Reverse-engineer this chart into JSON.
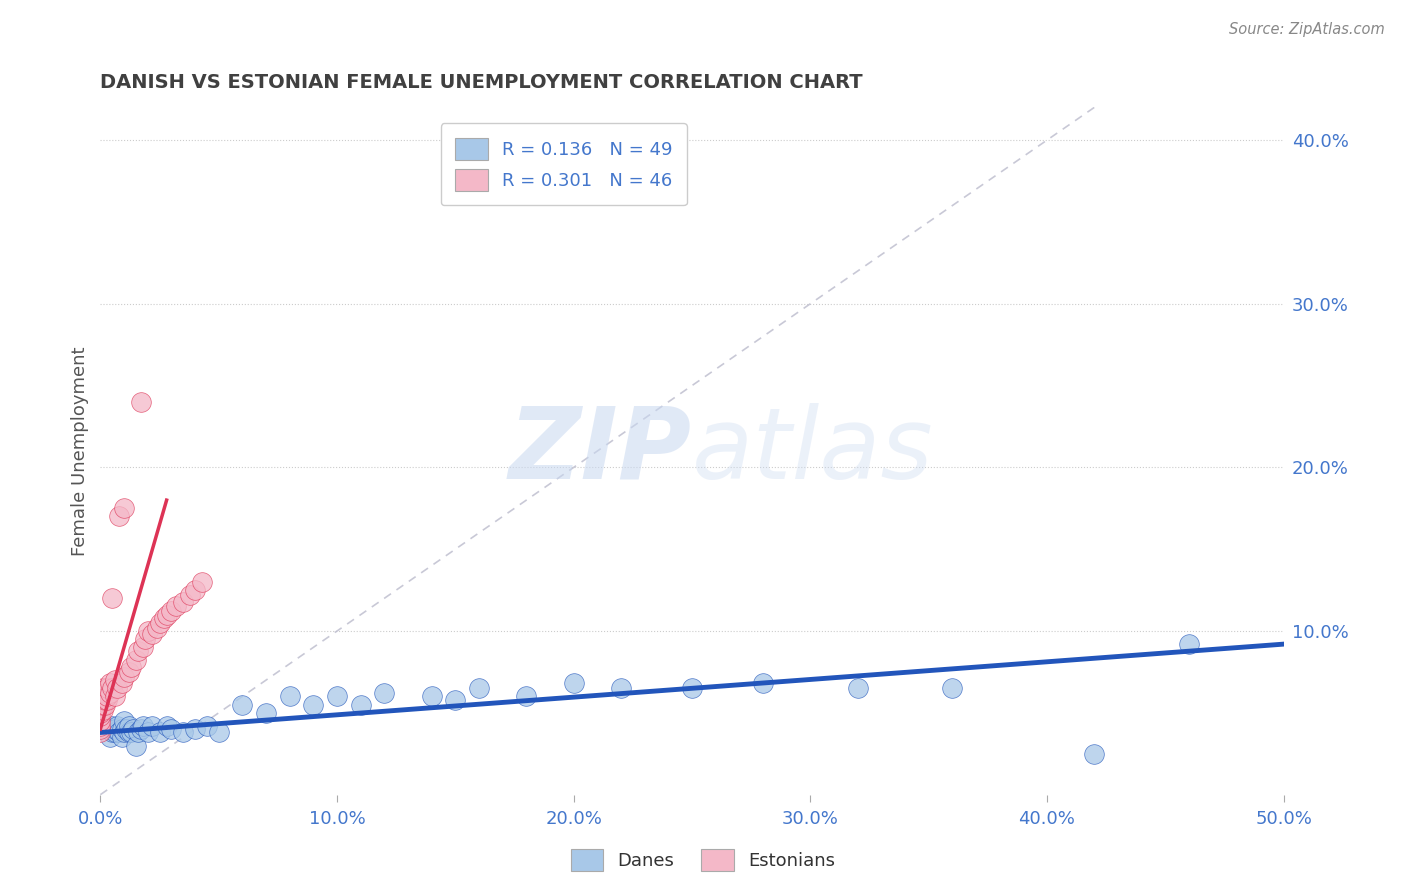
{
  "title": "DANISH VS ESTONIAN FEMALE UNEMPLOYMENT CORRELATION CHART",
  "source_text": "Source: ZipAtlas.com",
  "ylabel": "Female Unemployment",
  "xlim": [
    0.0,
    0.5
  ],
  "ylim": [
    0.0,
    0.42
  ],
  "xtick_labels": [
    "0.0%",
    "10.0%",
    "20.0%",
    "30.0%",
    "40.0%",
    "50.0%"
  ],
  "xtick_vals": [
    0.0,
    0.1,
    0.2,
    0.3,
    0.4,
    0.5
  ],
  "ytick_labels": [
    "10.0%",
    "20.0%",
    "30.0%",
    "40.0%"
  ],
  "ytick_vals": [
    0.1,
    0.2,
    0.3,
    0.4
  ],
  "legend_r_danes": "0.136",
  "legend_n_danes": "49",
  "legend_r_estonians": "0.301",
  "legend_n_estonians": "46",
  "danes_color": "#a8c8e8",
  "estonians_color": "#f4b8c8",
  "danes_line_color": "#2255bb",
  "estonians_line_color": "#dd3355",
  "danes_scatter_x": [
    0.003,
    0.004,
    0.005,
    0.005,
    0.006,
    0.006,
    0.007,
    0.008,
    0.009,
    0.009,
    0.01,
    0.01,
    0.011,
    0.012,
    0.012,
    0.013,
    0.014,
    0.015,
    0.016,
    0.017,
    0.018,
    0.02,
    0.022,
    0.025,
    0.028,
    0.03,
    0.035,
    0.04,
    0.045,
    0.05,
    0.06,
    0.07,
    0.08,
    0.09,
    0.1,
    0.11,
    0.12,
    0.14,
    0.15,
    0.16,
    0.18,
    0.2,
    0.22,
    0.25,
    0.28,
    0.32,
    0.36,
    0.42,
    0.46
  ],
  "danes_scatter_y": [
    0.04,
    0.035,
    0.038,
    0.042,
    0.038,
    0.04,
    0.042,
    0.038,
    0.035,
    0.04,
    0.038,
    0.045,
    0.04,
    0.038,
    0.042,
    0.038,
    0.04,
    0.03,
    0.038,
    0.04,
    0.042,
    0.038,
    0.042,
    0.038,
    0.042,
    0.04,
    0.038,
    0.04,
    0.042,
    0.038,
    0.055,
    0.05,
    0.06,
    0.055,
    0.06,
    0.055,
    0.062,
    0.06,
    0.058,
    0.065,
    0.06,
    0.068,
    0.065,
    0.065,
    0.068,
    0.065,
    0.065,
    0.025,
    0.092
  ],
  "estonians_scatter_x": [
    0.0,
    0.0,
    0.0,
    0.0,
    0.0,
    0.0,
    0.001,
    0.001,
    0.001,
    0.001,
    0.002,
    0.002,
    0.002,
    0.003,
    0.003,
    0.003,
    0.004,
    0.004,
    0.005,
    0.005,
    0.006,
    0.006,
    0.007,
    0.008,
    0.009,
    0.01,
    0.01,
    0.012,
    0.013,
    0.015,
    0.016,
    0.017,
    0.018,
    0.019,
    0.02,
    0.022,
    0.024,
    0.025,
    0.027,
    0.028,
    0.03,
    0.032,
    0.035,
    0.038,
    0.04,
    0.043
  ],
  "estonians_scatter_y": [
    0.038,
    0.04,
    0.042,
    0.045,
    0.048,
    0.05,
    0.052,
    0.055,
    0.06,
    0.065,
    0.055,
    0.058,
    0.062,
    0.058,
    0.06,
    0.065,
    0.062,
    0.068,
    0.065,
    0.12,
    0.06,
    0.07,
    0.065,
    0.17,
    0.068,
    0.072,
    0.175,
    0.075,
    0.078,
    0.082,
    0.088,
    0.24,
    0.09,
    0.095,
    0.1,
    0.098,
    0.102,
    0.105,
    0.108,
    0.11,
    0.112,
    0.115,
    0.118,
    0.122,
    0.125,
    0.13
  ],
  "blue_trend_x": [
    0.0,
    0.5
  ],
  "blue_trend_y": [
    0.038,
    0.092
  ],
  "pink_trend_x": [
    0.0,
    0.028
  ],
  "pink_trend_y": [
    0.04,
    0.18
  ],
  "diag_line_x": [
    0.0,
    0.42
  ],
  "diag_line_y": [
    0.0,
    0.42
  ],
  "watermark_zip": "ZIP",
  "watermark_atlas": "atlas",
  "background_color": "#ffffff",
  "grid_color": "#cccccc",
  "title_color": "#404040",
  "tick_color": "#4477cc"
}
